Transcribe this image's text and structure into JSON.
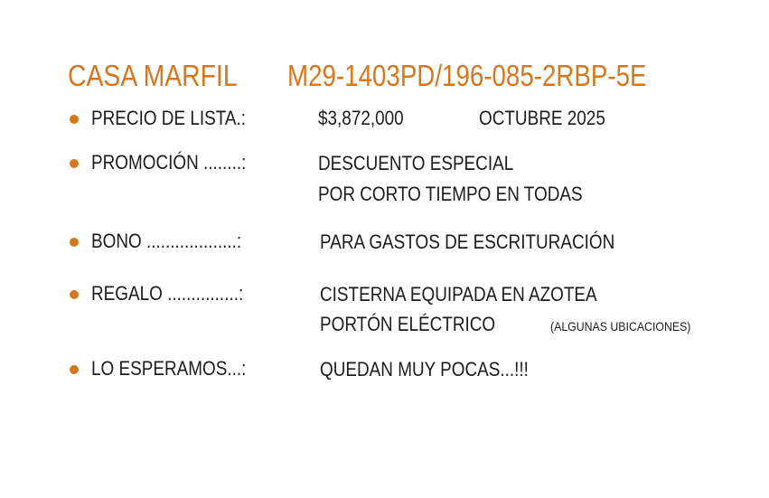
{
  "colors": {
    "accent": "#d9761c",
    "text": "#1c1c1c"
  },
  "header": {
    "name": "CASA MARFIL",
    "code": "M29-1403PD/196-085-2RBP-5E"
  },
  "items": [
    {
      "label": "PRECIO DE LISTA.:",
      "value": "$3,872,000",
      "date": "OCTUBRE 2025"
    },
    {
      "label": "PROMOCIÓN ........:",
      "line1": "DESCUENTO ESPECIAL",
      "line2": "POR CORTO TIEMPO EN TODAS"
    },
    {
      "label": "BONO ...................:",
      "line1": "PARA GASTOS DE ESCRITURACIÓN"
    },
    {
      "label": "REGALO ...............:",
      "line1": "CISTERNA EQUIPADA EN AZOTEA",
      "line2": "PORTÓN ELÉCTRICO",
      "note": "(ALGUNAS UBICACIONES)"
    },
    {
      "label": "LO ESPERAMOS...:",
      "line1": "QUEDAN MUY POCAS...!!!"
    }
  ]
}
